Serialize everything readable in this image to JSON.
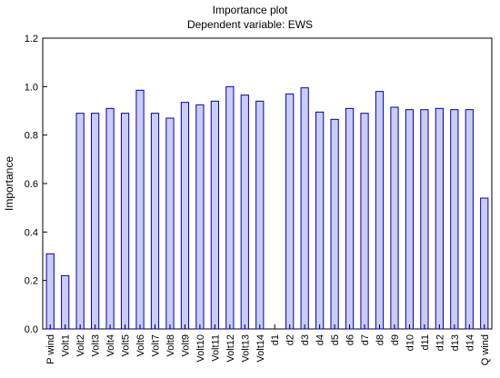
{
  "chart_data": {
    "type": "bar",
    "title": "Importance plot",
    "subtitle": "Dependent variable: EWS",
    "xlabel": "",
    "ylabel": "Importance",
    "ylim": [
      0,
      1.2
    ],
    "yticks": [
      0.0,
      0.2,
      0.4,
      0.6,
      0.8,
      1.0,
      1.2
    ],
    "ytick_labels": [
      "0.0",
      "0.2",
      "0.4",
      "0.6",
      "0.8",
      "1.0",
      "1.2"
    ],
    "grid": false,
    "legend": "none",
    "bar_color": "#c9cdf5",
    "bar_edge_color": "#0000b4",
    "categories": [
      "P wind",
      "Volt1",
      "Volt2",
      "Volt3",
      "Volt4",
      "Volt5",
      "Volt6",
      "Volt7",
      "Volt8",
      "Volt9",
      "Volt10",
      "Volt11",
      "Volt12",
      "Volt13",
      "Volt14",
      "d1",
      "d2",
      "d3",
      "d4",
      "d5",
      "d6",
      "d7",
      "d8",
      "d9",
      "d10",
      "d11",
      "d12",
      "d13",
      "d14",
      "Q wind"
    ],
    "values": [
      0.31,
      0.22,
      0.89,
      0.89,
      0.91,
      0.89,
      0.985,
      0.89,
      0.87,
      0.935,
      0.925,
      0.94,
      1.0,
      0.965,
      0.94,
      0.0,
      0.97,
      0.995,
      0.895,
      0.865,
      0.91,
      0.89,
      0.98,
      0.915,
      0.905,
      0.905,
      0.91,
      0.905,
      0.905,
      0.54
    ]
  }
}
